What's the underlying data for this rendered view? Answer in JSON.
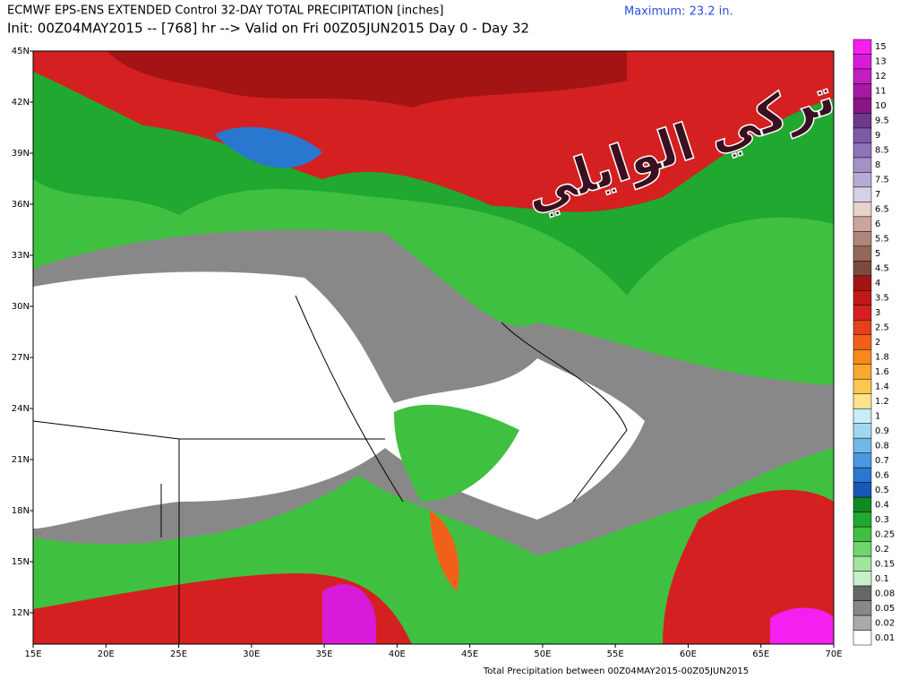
{
  "header": {
    "title": "ECMWF EPS-ENS EXTENDED Control 32-DAY TOTAL PRECIPITATION [inches]",
    "subtitle": "Init: 00Z04MAY2015 -- [768] hr --> Valid on Fri 00Z05JUN2015  Day 0 - Day 32",
    "maximum": "Maximum:  23.2 in."
  },
  "map": {
    "lat_labels": [
      "45N",
      "42N",
      "39N",
      "36N",
      "33N",
      "30N",
      "27N",
      "24N",
      "21N",
      "18N",
      "15N",
      "12N"
    ],
    "lon_labels": [
      "15E",
      "20E",
      "25E",
      "30E",
      "35E",
      "40E",
      "45E",
      "50E",
      "55E",
      "60E",
      "65E",
      "70E"
    ],
    "watermark": "تركي الوايلي"
  },
  "colorbar": {
    "levels": [
      15,
      13,
      12,
      11,
      10,
      9.5,
      9,
      8.5,
      8,
      7.5,
      7,
      6.5,
      6,
      5.5,
      5,
      4.5,
      4,
      3.5,
      3,
      2.5,
      2,
      1.8,
      1.6,
      1.4,
      1.2,
      1,
      0.9,
      0.8,
      0.7,
      0.6,
      0.5,
      0.4,
      0.3,
      0.25,
      0.2,
      0.15,
      0.1,
      0.08,
      0.05,
      0.02,
      0.01
    ],
    "colors": [
      "#f51ff0",
      "#d81bd8",
      "#c11fc1",
      "#a61aa0",
      "#8c1585",
      "#6e3a8a",
      "#7b5aa6",
      "#8f74b8",
      "#a391c8",
      "#b8acd6",
      "#d7d0e8",
      "#e8d4cc",
      "#c9a59b",
      "#b0867a",
      "#96685c",
      "#7e4a3e",
      "#a31414",
      "#c01818",
      "#d42020",
      "#e4401a",
      "#f06018",
      "#f58a1a",
      "#f8a830",
      "#fbc850",
      "#fde48a",
      "#c8ecf8",
      "#a0d8f0",
      "#70b8e8",
      "#4a98e0",
      "#2878d0",
      "#1858b8",
      "#108a20",
      "#20a830",
      "#40c040",
      "#70d470",
      "#a0e4a0",
      "#c8f0c8",
      "#666666",
      "#888888",
      "#aaaaaa",
      "#ffffff"
    ]
  },
  "footer": "Total Precipitation between 00Z04MAY2015-00Z05JUN2015"
}
